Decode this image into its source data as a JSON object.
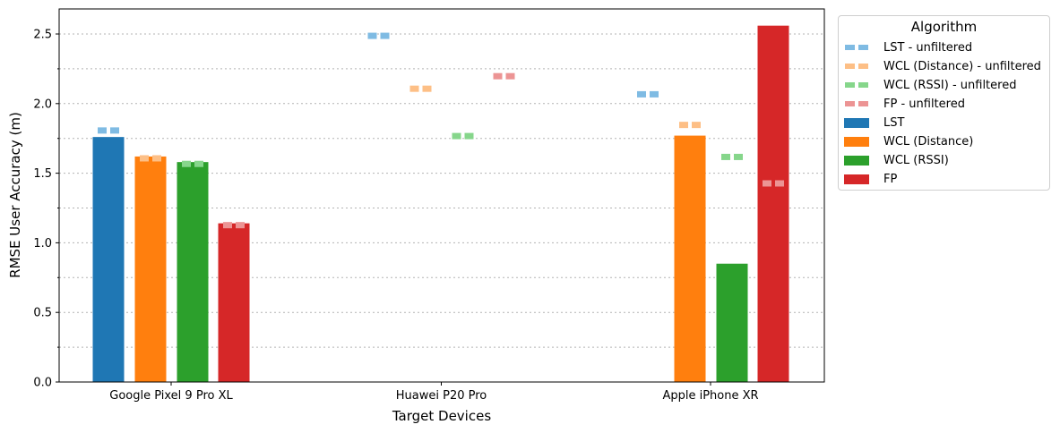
{
  "chart_data": {
    "type": "bar",
    "xlabel": "Target Devices",
    "ylabel": "RMSE User Accuracy (m)",
    "ylim": [
      0,
      2.68
    ],
    "yticks": [
      0.0,
      0.5,
      1.0,
      1.5,
      2.0,
      2.5
    ],
    "ytick_labels": [
      "0.0",
      "0.5",
      "1.0",
      "1.5",
      "2.0",
      "2.5"
    ],
    "grid": "horizontal dotted, major and minor",
    "categories": [
      "Google Pixel 9 Pro XL",
      "Huawei P20 Pro",
      "Apple iPhone XR"
    ],
    "series": [
      {
        "name": "LST",
        "color": "#1f77b4",
        "values": [
          1.76,
          null,
          null
        ]
      },
      {
        "name": "WCL (Distance)",
        "color": "#ff7f0e",
        "values": [
          1.62,
          null,
          1.77
        ]
      },
      {
        "name": "WCL (RSSI)",
        "color": "#2ca02c",
        "values": [
          1.58,
          null,
          0.85
        ]
      },
      {
        "name": "FP",
        "color": "#d62728",
        "values": [
          1.14,
          null,
          2.56
        ]
      }
    ],
    "unfiltered_series": [
      {
        "name": "LST - unfiltered",
        "color": "#7fbbe3",
        "values": [
          1.81,
          2.49,
          2.07
        ]
      },
      {
        "name": "WCL (Distance) - unfiltered",
        "color": "#fdbf86",
        "values": [
          1.61,
          2.11,
          1.85
        ]
      },
      {
        "name": "WCL (RSSI) - unfiltered",
        "color": "#86d68b",
        "values": [
          1.57,
          1.77,
          1.62
        ]
      },
      {
        "name": "FP - unfiltered",
        "color": "#ec9494",
        "values": [
          1.13,
          2.2,
          1.43
        ]
      }
    ],
    "legend": {
      "title": "Algorithm",
      "placement": "outside-right-top",
      "entries": [
        {
          "label": "LST - unfiltered",
          "color": "#7fbbe3",
          "style": "dash"
        },
        {
          "label": "WCL (Distance) - unfiltered",
          "color": "#fdbf86",
          "style": "dash"
        },
        {
          "label": "WCL (RSSI) - unfiltered",
          "color": "#86d68b",
          "style": "dash"
        },
        {
          "label": "FP - unfiltered",
          "color": "#ec9494",
          "style": "dash"
        },
        {
          "label": "LST",
          "color": "#1f77b4",
          "style": "solid"
        },
        {
          "label": "WCL (Distance)",
          "color": "#ff7f0e",
          "style": "solid"
        },
        {
          "label": "WCL (RSSI)",
          "color": "#2ca02c",
          "style": "solid"
        },
        {
          "label": "FP",
          "color": "#d62728",
          "style": "solid"
        }
      ]
    }
  }
}
